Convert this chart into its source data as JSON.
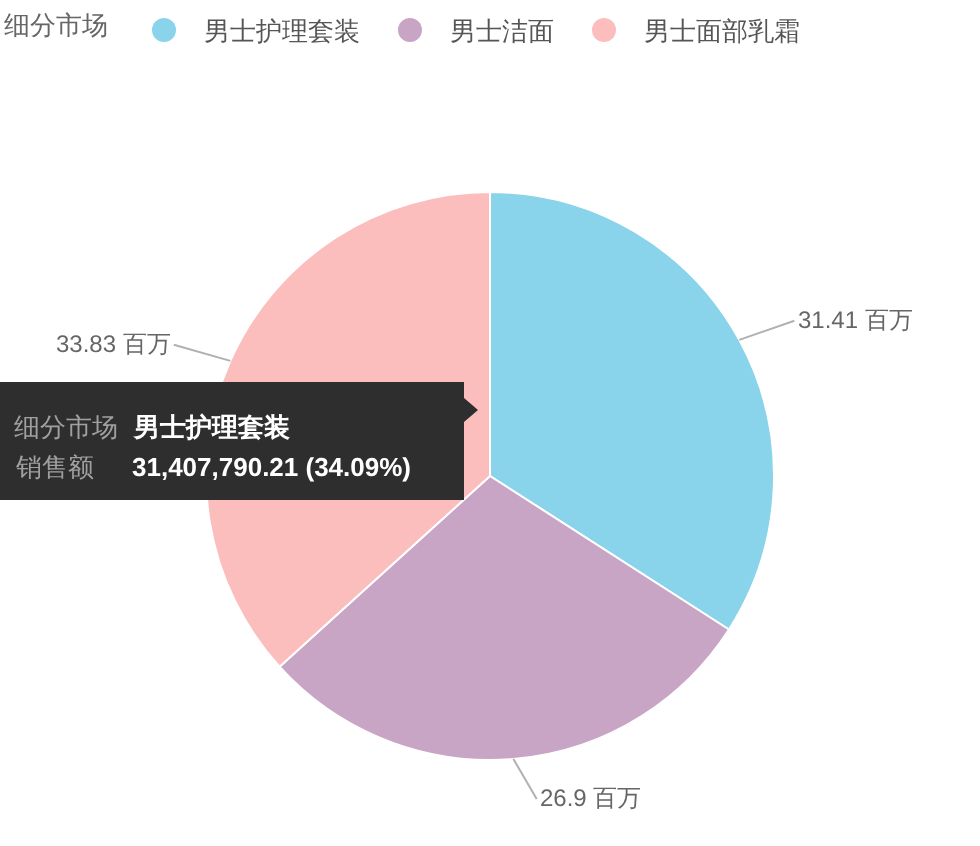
{
  "chart_data": {
    "type": "pie",
    "legend_title": "细分市场",
    "legend": "top left",
    "categories": [
      "男士护理套装",
      "男士洁面",
      "男士面部乳霜"
    ],
    "values": [
      31.41,
      26.9,
      33.83
    ],
    "colors": [
      "#89d3eb",
      "#c9a5c5",
      "#fcbdbd"
    ],
    "value_labels": [
      "31.41 百万",
      "26.9 百万",
      "33.83 百万"
    ],
    "annotations": [
      "细分市场",
      "男士护理套装",
      "销售额",
      "31,407,790.21 (34.09%)"
    ]
  }
}
